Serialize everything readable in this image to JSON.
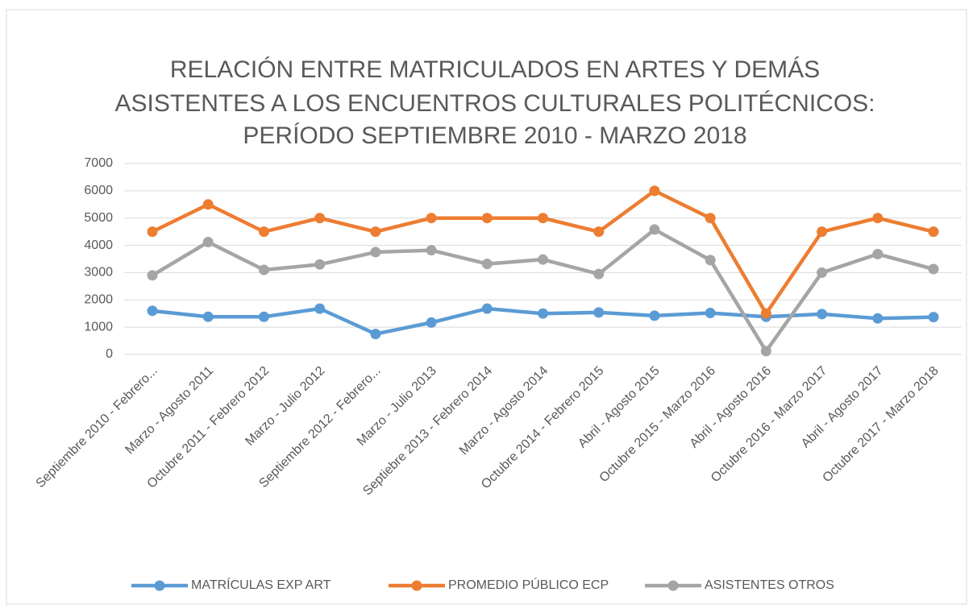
{
  "chart_data": {
    "type": "line",
    "title": [
      "RELACIÓN ENTRE MATRICULADOS EN ARTES Y DEMÁS",
      "ASISTENTES A LOS ENCUENTROS CULTURALES POLITÉCNICOS:",
      "PERÍODO SEPTIEMBRE 2010 - MARZO 2018"
    ],
    "categories": [
      "Septiembre 2010 - Febrero...",
      "Marzo - Agosto 2011",
      "Octubre 2011 - Febrero 2012",
      "Marzo - Julio 2012",
      "Septiembre 2012 - Febrero...",
      "Marzo - Julio 2013",
      "Septiebre 2013 - Febrero 2014",
      "Marzo - Agosto 2014",
      "Octubre 2014 - Febrero 2015",
      "Abril - Agosto 2015",
      "Octubre 2015 - Marzo 2016",
      "Abril - Agosto 2016",
      "Octubre 2016 - Marzo 2017",
      "Abril - Agosto 2017",
      "Octubre 2017 - Marzo 2018"
    ],
    "series": [
      {
        "name": "MATRÍCULAS EXP ART",
        "color": "#5b9bd5",
        "values": [
          1600,
          1380,
          1380,
          1680,
          750,
          1170,
          1680,
          1500,
          1540,
          1420,
          1520,
          1380,
          1480,
          1320,
          1370
        ]
      },
      {
        "name": "PROMEDIO PÚBLICO ECP",
        "color": "#ed7d31",
        "values": [
          4500,
          5500,
          4500,
          5000,
          4500,
          5000,
          5000,
          5000,
          4500,
          6000,
          5000,
          1500,
          4500,
          5000,
          4500
        ]
      },
      {
        "name": "ASISTENTES OTROS",
        "color": "#a5a5a5",
        "values": [
          2900,
          4120,
          3100,
          3300,
          3750,
          3820,
          3320,
          3480,
          2950,
          4580,
          3460,
          120,
          3000,
          3680,
          3130
        ]
      }
    ],
    "ylim": [
      0,
      7000
    ],
    "yticks": [
      0,
      1000,
      2000,
      3000,
      4000,
      5000,
      6000,
      7000
    ],
    "grid": true,
    "legend": "bottom"
  }
}
